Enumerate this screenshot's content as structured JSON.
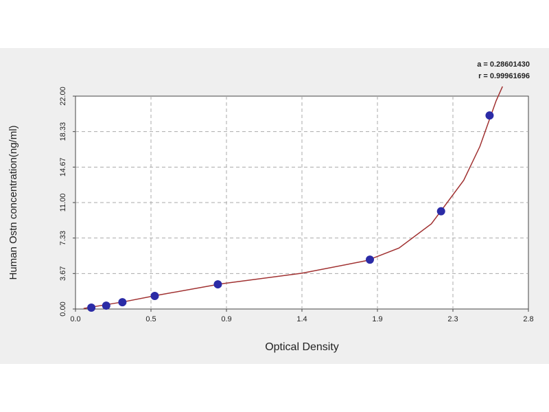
{
  "chart_data": {
    "type": "scatter",
    "x_label": "Optical Density",
    "y_label": "Human Ostn concentration(ng/ml)",
    "annotations": [
      "a = 0.28601430",
      "r = 0.99961696"
    ],
    "x": [
      0.098,
      0.19,
      0.29,
      0.49,
      0.88,
      1.82,
      2.26,
      2.56
    ],
    "values": [
      0.14,
      0.35,
      0.7,
      1.35,
      2.55,
      5.1,
      10.1,
      20.0
    ],
    "color": "#2b2ba6",
    "fit": {
      "color": "#a03030",
      "x": [
        0.05,
        0.1,
        0.3,
        0.5,
        0.9,
        1.4,
        1.8,
        2.0,
        2.2,
        2.4,
        2.5,
        2.6,
        2.64
      ],
      "values": [
        0.05,
        0.2,
        0.75,
        1.4,
        2.6,
        3.7,
        5.0,
        6.3,
        8.8,
        13.3,
        16.8,
        21.5,
        23.0
      ]
    },
    "xlim": [
      0,
      2.8
    ],
    "ylim": [
      0,
      22
    ],
    "xticks": [
      {
        "value": 0,
        "label": "0.0"
      },
      {
        "value": 0.4667,
        "label": "0.5"
      },
      {
        "value": 0.9333,
        "label": "0.9"
      },
      1.4,
      {
        "value": 1.8667,
        "label": "1.9"
      },
      {
        "value": 2.3333,
        "label": "2.3"
      },
      2.8
    ],
    "yticks": [
      {
        "value": 0,
        "label": "0.00"
      },
      {
        "value": 3.667,
        "label": "3.67"
      },
      {
        "value": 7.333,
        "label": "7.33"
      },
      {
        "value": 11,
        "label": "11.00"
      },
      {
        "value": 14.667,
        "label": "14.67"
      },
      {
        "value": 18.333,
        "label": "18.33"
      },
      {
        "value": 22,
        "label": "22.00"
      }
    ],
    "grid": true
  }
}
